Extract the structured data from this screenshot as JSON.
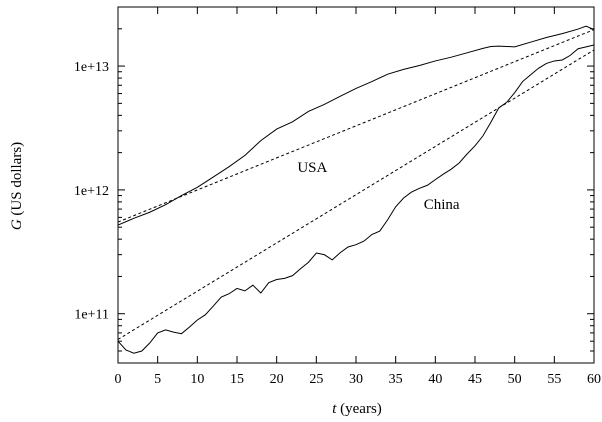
{
  "chart_data": {
    "type": "line",
    "xlabel_var": "t",
    "xlabel_unit": " (years)",
    "ylabel_var": "G",
    "ylabel_unit": " (US dollars)",
    "xlim": [
      0,
      60
    ],
    "ylim": [
      40000000000,
      30000000000000
    ],
    "yscale": "log",
    "grid": false,
    "xticks": [
      0,
      5,
      10,
      15,
      20,
      25,
      30,
      35,
      40,
      45,
      50,
      55,
      60
    ],
    "xtick_labels": [
      "0",
      "5",
      "10",
      "15",
      "20",
      "25",
      "30",
      "35",
      "40",
      "45",
      "50",
      "55",
      "60"
    ],
    "yticks": [
      100000000000,
      1000000000000,
      10000000000000
    ],
    "ytick_labels": [
      "1e+11",
      "1e+12",
      "1e+13"
    ],
    "series": [
      {
        "name": "USA",
        "style": "solid",
        "label_at": [
          24.5,
          1400000000000
        ],
        "x": [
          0,
          2,
          4,
          6,
          8,
          10,
          12,
          14,
          16,
          18,
          20,
          22,
          24,
          26,
          28,
          30,
          32,
          34,
          36,
          38,
          40,
          42,
          44,
          46,
          47,
          48,
          50,
          52,
          54,
          56,
          58,
          59,
          60
        ],
        "values": [
          520000000000,
          590000000000,
          660000000000,
          760000000000,
          900000000000,
          1050000000000,
          1270000000000,
          1540000000000,
          1900000000000,
          2500000000000,
          3100000000000,
          3550000000000,
          4300000000000,
          4900000000000,
          5700000000000,
          6600000000000,
          7500000000000,
          8600000000000,
          9400000000000,
          10100000000000,
          11000000000000,
          11800000000000,
          12800000000000,
          13900000000000,
          14400000000000,
          14500000000000,
          14300000000000,
          15600000000000,
          17000000000000,
          18300000000000,
          19900000000000,
          21000000000000,
          19700000000000
        ]
      },
      {
        "name": "",
        "style": "dashed",
        "x": [
          0,
          60
        ],
        "values": [
          550000000000,
          19700000000000
        ]
      },
      {
        "name": "China",
        "style": "solid",
        "label_at": [
          40.8,
          700000000000
        ],
        "x": [
          0,
          1,
          2,
          3,
          4,
          5,
          6,
          7,
          8,
          9,
          10,
          11,
          12,
          13,
          14,
          15,
          16,
          17,
          18,
          19,
          20,
          21,
          22,
          23,
          24,
          25,
          26,
          27,
          28,
          29,
          30,
          31,
          32,
          33,
          34,
          35,
          36,
          37,
          38,
          39,
          40,
          41,
          42,
          43,
          44,
          45,
          46,
          47,
          48,
          49,
          50,
          51,
          52,
          53,
          54,
          55,
          56,
          57,
          58,
          59,
          60
        ],
        "values": [
          60000000000,
          51000000000,
          48000000000,
          50000000000,
          58000000000,
          70000000000,
          74000000000,
          71000000000,
          69000000000,
          78000000000,
          89000000000,
          98000000000,
          115000000000,
          136000000000,
          145000000000,
          160000000000,
          153000000000,
          170000000000,
          147000000000,
          178000000000,
          189000000000,
          193000000000,
          203000000000,
          231000000000,
          260000000000,
          309000000000,
          300000000000,
          272000000000,
          311000000000,
          346000000000,
          361000000000,
          386000000000,
          436000000000,
          465000000000,
          575000000000,
          731000000000,
          860000000000,
          961000000000,
          1030000000000,
          1090000000000,
          1210000000000,
          1340000000000,
          1470000000000,
          1650000000000,
          1950000000000,
          2270000000000,
          2730000000000,
          3520000000000,
          4600000000000,
          5100000000000,
          6100000000000,
          7500000000000,
          8500000000000,
          9600000000000,
          10500000000000,
          11000000000000,
          11200000000000,
          12200000000000,
          13800000000000,
          14300000000000,
          14800000000000
        ]
      },
      {
        "name": "",
        "style": "dashed",
        "x": [
          0,
          60
        ],
        "values": [
          62000000000,
          13500000000000
        ]
      }
    ]
  }
}
